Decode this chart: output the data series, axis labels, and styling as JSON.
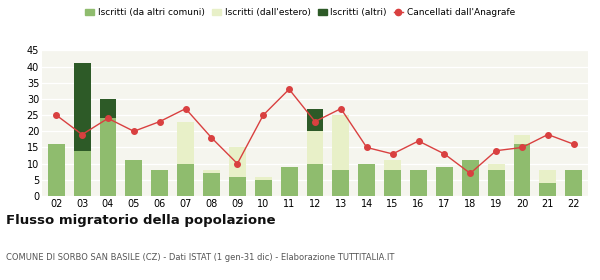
{
  "years": [
    "02",
    "03",
    "04",
    "05",
    "06",
    "07",
    "08",
    "09",
    "10",
    "11",
    "12",
    "13",
    "14",
    "15",
    "16",
    "17",
    "18",
    "19",
    "20",
    "21",
    "22"
  ],
  "iscritti_altri_comuni": [
    16,
    14,
    24,
    11,
    8,
    10,
    7,
    6,
    5,
    9,
    10,
    8,
    10,
    8,
    8,
    9,
    11,
    8,
    16,
    4,
    8
  ],
  "iscritti_estero": [
    0,
    0,
    0,
    0,
    0,
    13,
    1,
    9,
    1,
    0,
    10,
    17,
    0,
    3,
    0,
    0,
    0,
    2,
    3,
    4,
    0
  ],
  "iscritti_altri": [
    0,
    27,
    6,
    0,
    0,
    0,
    0,
    0,
    0,
    0,
    7,
    0,
    0,
    0,
    0,
    0,
    0,
    0,
    0,
    0,
    0
  ],
  "cancellati": [
    25,
    19,
    24,
    20,
    23,
    27,
    18,
    10,
    25,
    33,
    23,
    27,
    15,
    13,
    17,
    13,
    7,
    14,
    15,
    19,
    16
  ],
  "color_comuni": "#8fbc6e",
  "color_estero": "#e8f0c8",
  "color_altri": "#2d5a27",
  "color_cancellati": "#d94040",
  "ylim": [
    0,
    45
  ],
  "yticks": [
    0,
    5,
    10,
    15,
    20,
    25,
    30,
    35,
    40,
    45
  ],
  "title": "Flusso migratorio della popolazione",
  "subtitle": "COMUNE DI SORBO SAN BASILE (CZ) - Dati ISTAT (1 gen-31 dic) - Elaborazione TUTTITALIA.IT",
  "legend_labels": [
    "Iscritti (da altri comuni)",
    "Iscritti (dall'estero)",
    "Iscritti (altri)",
    "Cancellati dall'Anagrafe"
  ],
  "bg_color": "#ffffff",
  "plot_bg_color": "#f5f5ee"
}
